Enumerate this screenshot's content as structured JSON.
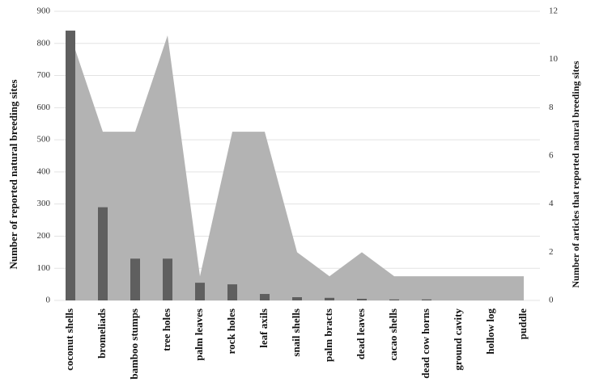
{
  "chart_data": {
    "type": "bar_area",
    "y_label": "Number of reported natural breeding sites",
    "y2_label": "Number of articles that reported natural breeding sites",
    "categories": [
      "coconut shells",
      "bromeliads",
      "bamboo stumps",
      "tree holes",
      "palm leaves",
      "rock holes",
      "leaf axils",
      "snail shells",
      "palm bracts",
      "dead leaves",
      "cacao shells",
      "dead cow horns",
      "ground cavity",
      "hollow log",
      "puddle"
    ],
    "series": [
      {
        "type": "area",
        "color": "#b3b3b3",
        "axis": "y2",
        "values": [
          11,
          7,
          7,
          11,
          1,
          7,
          7,
          2,
          1,
          2,
          1,
          1,
          1,
          1,
          1
        ]
      },
      {
        "type": "bar",
        "color": "#5f5f5f",
        "values": [
          840,
          290,
          130,
          130,
          55,
          50,
          20,
          10,
          8,
          5,
          3,
          3,
          0,
          0,
          0
        ]
      }
    ],
    "ylim": [
      0,
      900
    ],
    "yticks": [
      0,
      100,
      200,
      300,
      400,
      500,
      600,
      700,
      800,
      900
    ],
    "y2lim": [
      0,
      12
    ],
    "y2ticks": [
      0,
      2,
      4,
      6,
      8,
      10,
      12
    ],
    "grid": true
  }
}
